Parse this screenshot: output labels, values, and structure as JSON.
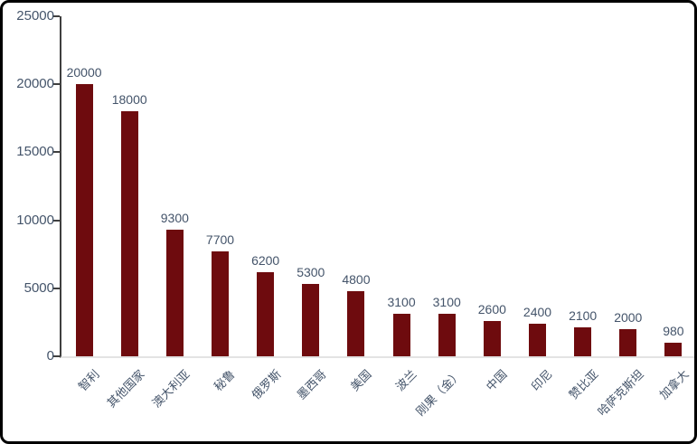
{
  "frame": {
    "background": "#FFFFFF",
    "border_color": "#000000"
  },
  "chart_data": {
    "type": "bar",
    "title": "",
    "categories": [
      "智利",
      "其他国家",
      "澳大利亚",
      "秘鲁",
      "俄罗斯",
      "墨西哥",
      "美国",
      "波兰",
      "刚果（金）",
      "中国",
      "印尼",
      "赞比亚",
      "哈萨克斯坦",
      "加拿大"
    ],
    "values": [
      20000,
      18000,
      9300,
      7700,
      6200,
      5300,
      4800,
      3100,
      3100,
      2600,
      2400,
      2100,
      2000,
      980
    ],
    "data_labels": [
      "20000",
      "18000",
      "9300",
      "7700",
      "6200",
      "5300",
      "4800",
      "3100",
      "3100",
      "2600",
      "2400",
      "2100",
      "2000",
      "980"
    ],
    "xlabel": "",
    "ylabel": "",
    "ylim": [
      0,
      25000
    ],
    "yticks": [
      0,
      5000,
      10000,
      15000,
      20000,
      25000
    ],
    "grid": false,
    "legend": false,
    "bar_color": "#6E0B0E",
    "label_color": "#44546A",
    "axis_line_color": "#3F3F3F",
    "baseline_color": "#E3E3E3"
  }
}
